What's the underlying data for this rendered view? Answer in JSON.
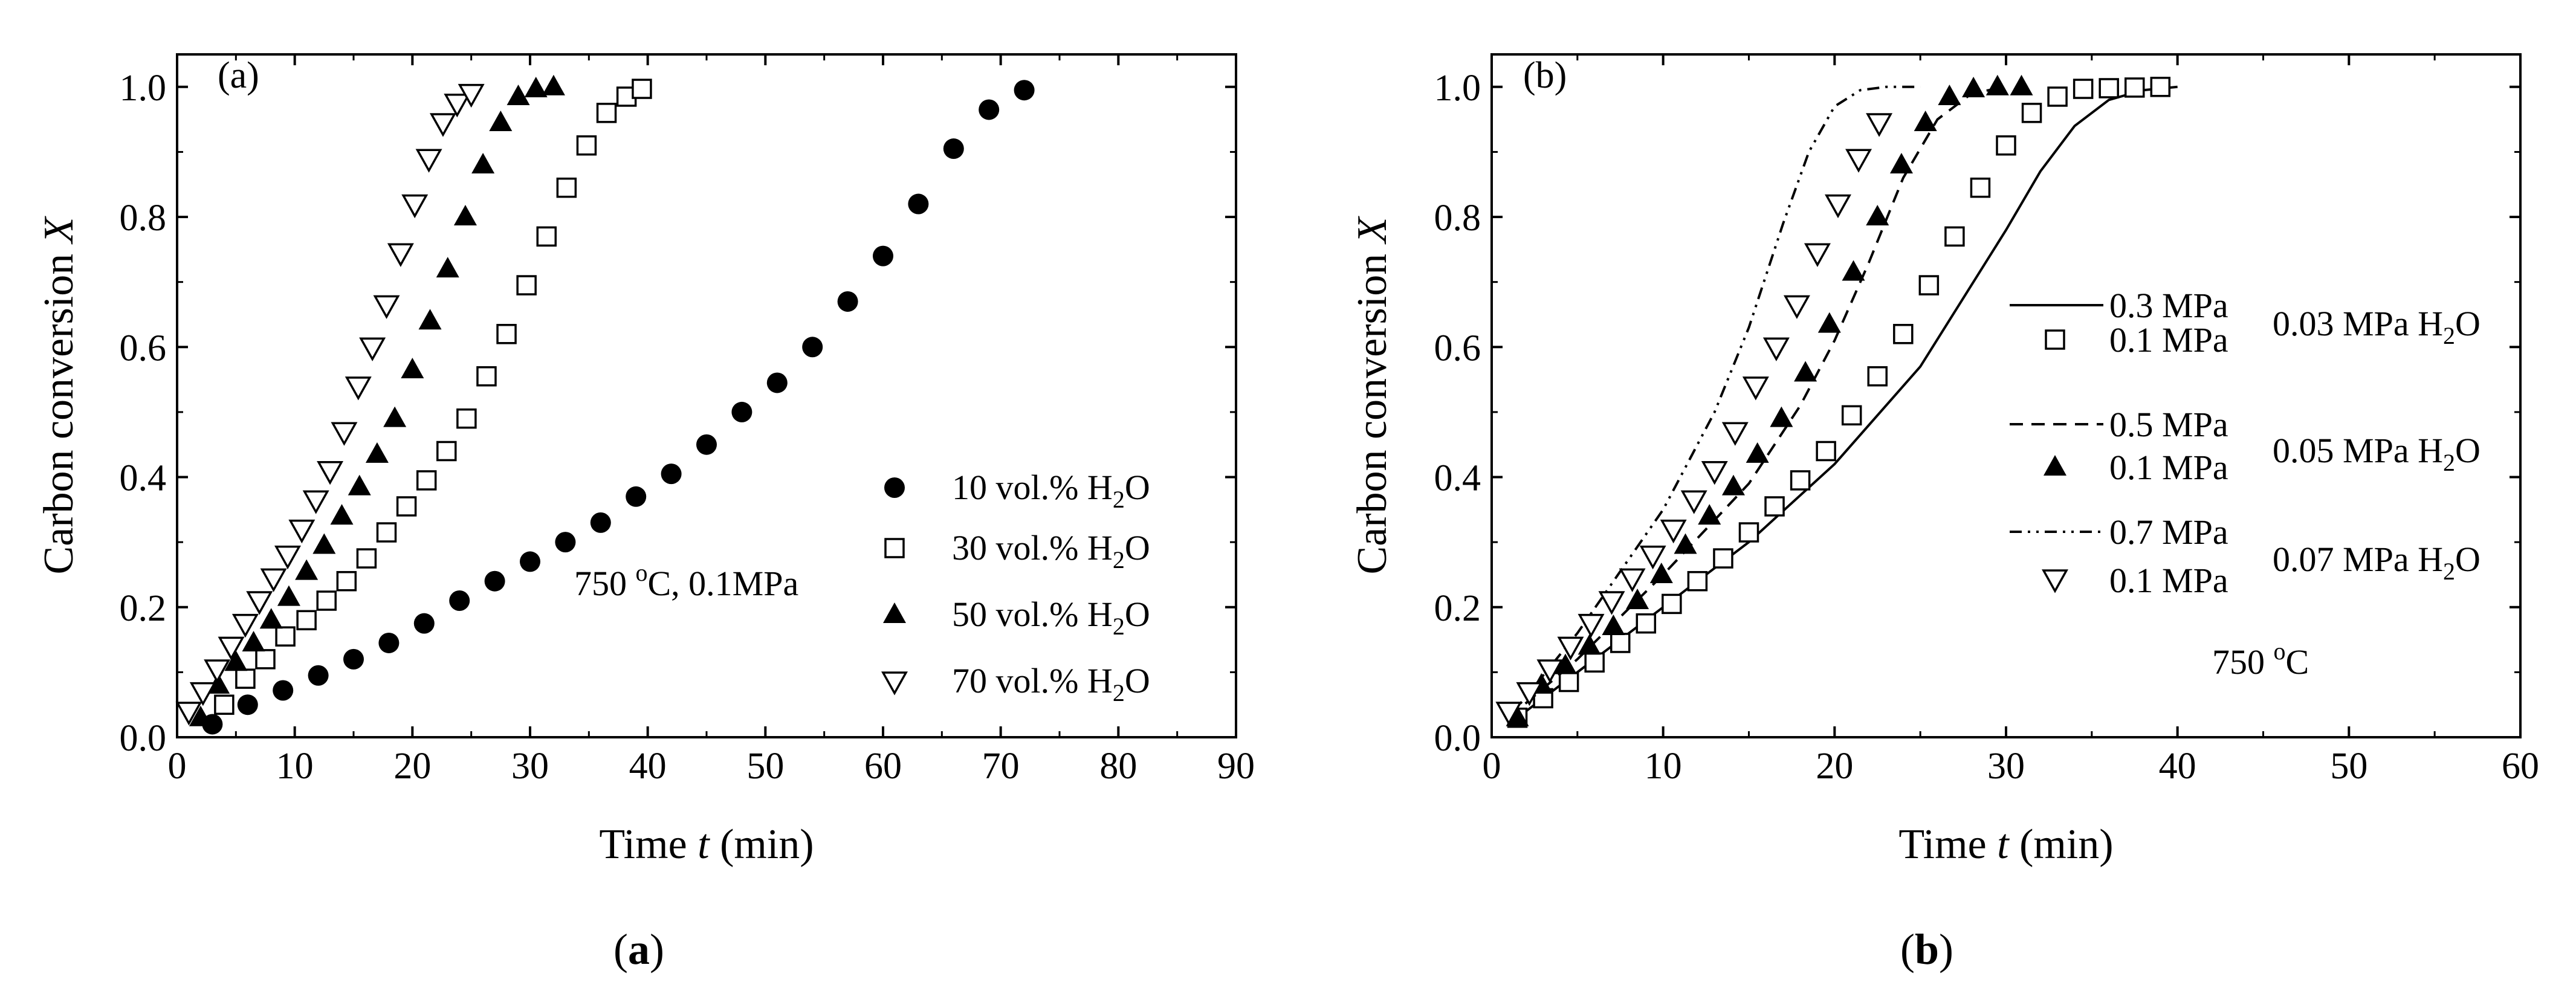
{
  "chart_data": [
    {
      "type": "scatter",
      "panel_label": "(a)",
      "caption": "a",
      "xlabel": {
        "pre": "Time ",
        "var": "t",
        "post": " (min)"
      },
      "ylabel": {
        "pre": "Carbon conversion ",
        "var": "X"
      },
      "xlim": [
        0,
        90
      ],
      "ylim": [
        0,
        1.05
      ],
      "xticks": [
        "0",
        "10",
        "20",
        "30",
        "40",
        "50",
        "60",
        "70",
        "80",
        "90"
      ],
      "yticks": [
        "0.0",
        "0.2",
        "0.4",
        "0.6",
        "0.8",
        "1.0"
      ],
      "annotation": {
        "main": "750 ",
        "sup": "o",
        "rest": "C, 0.1MPa"
      },
      "legend_position": "right",
      "series": [
        {
          "name": "10 vol.% H2O",
          "label_main": "10 vol.% H",
          "label_sub": "2",
          "label_end": "O",
          "marker": "filled-circle",
          "x": [
            3,
            6,
            9,
            12,
            15,
            18,
            21,
            24,
            27,
            30,
            33,
            36,
            39,
            42,
            45,
            48,
            51,
            54,
            57,
            60,
            63,
            66,
            69,
            72
          ],
          "y": [
            0.02,
            0.05,
            0.072,
            0.095,
            0.12,
            0.145,
            0.175,
            0.21,
            0.24,
            0.27,
            0.3,
            0.33,
            0.37,
            0.405,
            0.45,
            0.5,
            0.545,
            0.6,
            0.67,
            0.74,
            0.82,
            0.905,
            0.965,
            0.995
          ]
        },
        {
          "name": "30 vol.% H2O",
          "label_main": "30 vol.% H",
          "label_sub": "2",
          "label_end": "O",
          "marker": "open-square",
          "x": [
            4,
            5.8,
            7.5,
            9.2,
            11,
            12.7,
            14.4,
            16.1,
            17.8,
            19.5,
            21.2,
            22.9,
            24.6,
            26.3,
            28,
            29.7,
            31.4,
            33.1,
            34.8,
            36.5,
            38.2,
            39.5
          ],
          "y": [
            0.05,
            0.09,
            0.12,
            0.155,
            0.18,
            0.21,
            0.24,
            0.275,
            0.315,
            0.355,
            0.395,
            0.44,
            0.49,
            0.555,
            0.62,
            0.695,
            0.77,
            0.845,
            0.91,
            0.96,
            0.985,
            0.997
          ]
        },
        {
          "name": "50 vol.% H2O",
          "label_main": "50 vol.% H",
          "label_sub": "2",
          "label_end": "O",
          "marker": "filled-triangle",
          "x": [
            2,
            3.5,
            5,
            6.5,
            8,
            9.5,
            11,
            12.5,
            14,
            15.5,
            17,
            18.5,
            20,
            21.5,
            23,
            24.5,
            26,
            27.5,
            29,
            30.5,
            32
          ],
          "y": [
            0.03,
            0.08,
            0.115,
            0.145,
            0.18,
            0.215,
            0.255,
            0.295,
            0.34,
            0.385,
            0.435,
            0.49,
            0.565,
            0.64,
            0.72,
            0.8,
            0.88,
            0.945,
            0.985,
            0.997,
            1.0
          ]
        },
        {
          "name": "70 vol.% H2O",
          "label_main": "70 vol.% H",
          "label_sub": "2",
          "label_end": "O",
          "marker": "open-triangle-down",
          "x": [
            1,
            2.2,
            3.4,
            4.6,
            5.8,
            7,
            8.2,
            9.4,
            10.6,
            11.8,
            13,
            14.2,
            15.4,
            16.6,
            17.8,
            19,
            20.2,
            21.4,
            22.6,
            23.8,
            25
          ],
          "y": [
            0.04,
            0.07,
            0.105,
            0.14,
            0.175,
            0.21,
            0.245,
            0.28,
            0.32,
            0.365,
            0.41,
            0.47,
            0.54,
            0.6,
            0.665,
            0.745,
            0.82,
            0.89,
            0.945,
            0.975,
            0.99
          ]
        }
      ]
    },
    {
      "type": "scatter",
      "panel_label": "(b)",
      "caption": "b",
      "xlabel": {
        "pre": "Time ",
        "var": "t",
        "post": " (min)"
      },
      "ylabel": {
        "pre": "Carbon conversion ",
        "var": "X"
      },
      "xlim": [
        0,
        60
      ],
      "ylim": [
        0,
        1.05
      ],
      "xticks": [
        "0",
        "10",
        "20",
        "30",
        "40",
        "50",
        "60"
      ],
      "yticks": [
        "0.0",
        "0.2",
        "0.4",
        "0.6",
        "0.8",
        "1.0"
      ],
      "annotation": {
        "main": "750 ",
        "sup": "o",
        "rest": "C"
      },
      "legend_position": "right",
      "legend_groups": [
        {
          "main": "0.03 MPa H",
          "sub": "2",
          "end": "O"
        },
        {
          "main": "0.05 MPa H",
          "sub": "2",
          "end": "O"
        },
        {
          "main": "0.07 MPa H",
          "sub": "2",
          "end": "O"
        }
      ],
      "series": [
        {
          "name": "0.3 MPa",
          "marker": "solid-line",
          "x": [
            1,
            5,
            10,
            15,
            20,
            25,
            30,
            32,
            34,
            36,
            38,
            40
          ],
          "y": [
            0.02,
            0.1,
            0.2,
            0.3,
            0.42,
            0.57,
            0.78,
            0.87,
            0.94,
            0.98,
            0.995,
            1.0
          ]
        },
        {
          "name": "0.1 MPa",
          "marker": "open-square",
          "x": [
            1.5,
            3,
            4.5,
            6,
            7.5,
            9,
            10.5,
            12,
            13.5,
            15,
            16.5,
            18,
            19.5,
            21,
            22.5,
            24,
            25.5,
            27,
            28.5,
            30,
            31.5,
            33,
            34.5,
            36,
            37.5,
            39
          ],
          "y": [
            0.03,
            0.06,
            0.085,
            0.115,
            0.145,
            0.175,
            0.205,
            0.24,
            0.275,
            0.315,
            0.355,
            0.395,
            0.44,
            0.495,
            0.555,
            0.62,
            0.695,
            0.77,
            0.845,
            0.91,
            0.96,
            0.985,
            0.997,
            0.998,
            0.999,
            1.0
          ]
        },
        {
          "name": "0.5 MPa",
          "marker": "dashed-line",
          "x": [
            1,
            5,
            10,
            15,
            18,
            20,
            22,
            24,
            26,
            28,
            30
          ],
          "y": [
            0.03,
            0.12,
            0.25,
            0.39,
            0.51,
            0.61,
            0.73,
            0.86,
            0.95,
            0.99,
            1.0
          ]
        },
        {
          "name": "0.1 MPa",
          "marker": "filled-triangle",
          "x": [
            1.5,
            2.9,
            4.3,
            5.7,
            7.1,
            8.5,
            9.9,
            11.3,
            12.7,
            14.1,
            15.5,
            16.9,
            18.3,
            19.7,
            21.1,
            22.5,
            23.9,
            25.3,
            26.7,
            28.1,
            29.5,
            30.9
          ],
          "y": [
            0.03,
            0.08,
            0.11,
            0.14,
            0.17,
            0.21,
            0.25,
            0.295,
            0.34,
            0.385,
            0.435,
            0.49,
            0.56,
            0.635,
            0.715,
            0.8,
            0.88,
            0.945,
            0.985,
            0.997,
            1.0,
            1.0
          ]
        },
        {
          "name": "0.7 MPa",
          "marker": "dash-dot-dot-line",
          "x": [
            1,
            5,
            10,
            13,
            15,
            17,
            18.5,
            20,
            21.5,
            23,
            25
          ],
          "y": [
            0.03,
            0.16,
            0.35,
            0.5,
            0.63,
            0.79,
            0.9,
            0.97,
            0.995,
            1.0,
            1.0
          ]
        },
        {
          "name": "0.1 MPa",
          "marker": "open-triangle-down",
          "x": [
            1,
            2.2,
            3.4,
            4.6,
            5.8,
            7,
            8.2,
            9.4,
            10.6,
            11.8,
            13,
            14.2,
            15.4,
            16.6,
            17.8,
            19,
            20.2,
            21.4,
            22.6
          ],
          "y": [
            0.04,
            0.07,
            0.105,
            0.14,
            0.175,
            0.21,
            0.245,
            0.28,
            0.32,
            0.365,
            0.41,
            0.47,
            0.54,
            0.6,
            0.665,
            0.745,
            0.82,
            0.89,
            0.945
          ]
        }
      ]
    }
  ]
}
